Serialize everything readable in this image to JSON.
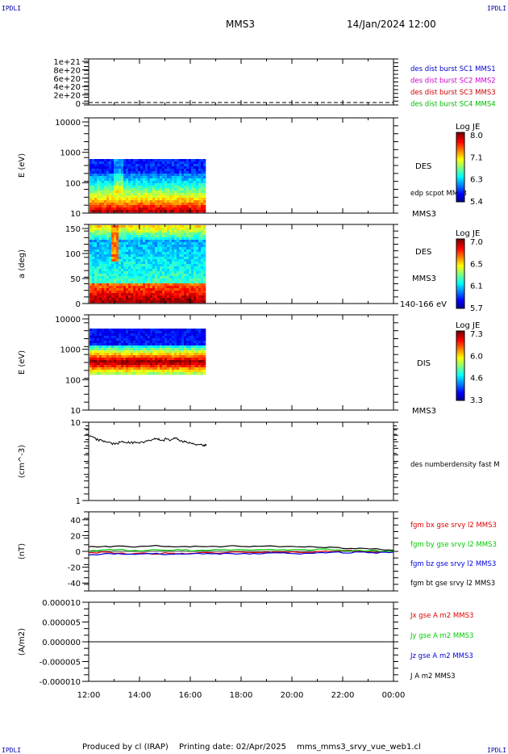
{
  "header": {
    "corner_label": "IPDLI",
    "spacecraft": "MMS3",
    "date_time": "14/Jan/2024 12:00"
  },
  "footer": {
    "produced_by": "Produced by cl (IRAP)",
    "printing_date": "Printing date: 02/Apr/2025",
    "filename": "mms_mms3_srvy_vue_web1.cl"
  },
  "colors": {
    "mms1": "#0000cc",
    "mms2": "#cc00cc",
    "mms3": "#cc0000",
    "mms4": "#00bb00",
    "bx": "#dd0000",
    "by": "#00cc00",
    "bz": "#0000dd",
    "bt": "#000000"
  },
  "chart_data": [
    {
      "type": "line",
      "panel": "burst flags",
      "ylabel": "",
      "y_ticks": [
        "1e+21",
        "8e+20",
        "6e+20",
        "4e+20",
        "2e+20",
        "0"
      ],
      "ylim": [
        0,
        1e+21
      ],
      "legend": [
        "des dist burst SC1 MMS1",
        "des dist burst SC2 MMS2",
        "des dist burst SC3 MMS3",
        "des dist burst SC4 MMS4"
      ],
      "legend_placement": "right",
      "series": [
        {
          "values": [
            0,
            0
          ]
        }
      ]
    },
    {
      "type": "heatmap",
      "panel": "DES energy spectrogram",
      "ylabel": "E (eV)",
      "y_ticks": [
        "10000",
        "1000",
        "100",
        "10"
      ],
      "ylim": [
        10,
        15000
      ],
      "y_scale": "log",
      "data_span": [
        "12:00",
        "16:35"
      ],
      "data_energy_range_eV": [
        10,
        1000
      ],
      "instrument_label": "DES",
      "overplot_label": "edp scpot MMS3",
      "spacecraft_label": "MMS3",
      "colorbar": {
        "title": "Log JE",
        "ticks": [
          "8.0",
          "7.1",
          "6.3",
          "5.4"
        ],
        "range": [
          5.4,
          8.0
        ]
      }
    },
    {
      "type": "heatmap",
      "panel": "DES pitch angle",
      "ylabel": "a (deg)",
      "y_ticks": [
        "150",
        "100",
        "50",
        "0"
      ],
      "ylim": [
        0,
        180
      ],
      "data_span": [
        "12:00",
        "16:35"
      ],
      "instrument_label": "DES",
      "spacecraft_label": "MMS3",
      "energy_range": "140-166 eV",
      "colorbar": {
        "title": "Log JE",
        "ticks": [
          "7.0",
          "6.5",
          "6.1",
          "5.7"
        ],
        "range": [
          5.7,
          7.0
        ]
      }
    },
    {
      "type": "heatmap",
      "panel": "DIS energy spectrogram",
      "ylabel": "E (eV)",
      "y_ticks": [
        "10000",
        "1000",
        "100",
        "10"
      ],
      "ylim": [
        10,
        15000
      ],
      "y_scale": "log",
      "data_span": [
        "12:00",
        "16:35"
      ],
      "data_energy_range_eV": [
        200,
        10000
      ],
      "instrument_label": "DIS",
      "spacecraft_label": "MMS3",
      "colorbar": {
        "title": "Log JE",
        "ticks": [
          "7.3",
          "6.0",
          "4.6",
          "3.3"
        ],
        "range": [
          3.3,
          7.3
        ]
      }
    },
    {
      "type": "line",
      "panel": "density",
      "ylabel": "(cm^-3)",
      "y_ticks": [
        "10",
        "1"
      ],
      "ylim": [
        1,
        10
      ],
      "y_scale": "log",
      "legend": [
        "des numberdensity fast M"
      ],
      "series": [
        {
          "x_hours": [
            0,
            0.1,
            0.2,
            0.3,
            0.4,
            0.5,
            0.6,
            0.7,
            0.8,
            0.9,
            1.0,
            1.1,
            1.2,
            1.3,
            1.4,
            1.5,
            1.6,
            1.7,
            1.8,
            1.9,
            2.0,
            2.1,
            2.2,
            2.3,
            2.4,
            2.5,
            2.6,
            2.7,
            2.8,
            2.9,
            3.0,
            3.1,
            3.2,
            3.3,
            3.4,
            3.5,
            3.6,
            3.7,
            3.8,
            3.9,
            4.0,
            4.1,
            4.2,
            4.3,
            4.4,
            4.5,
            4.58
          ],
          "values": [
            6.6,
            6.5,
            6.2,
            6.0,
            5.9,
            5.8,
            5.7,
            5.6,
            5.5,
            5.3,
            5.3,
            5.4,
            5.5,
            5.6,
            5.6,
            5.5,
            5.4,
            5.5,
            5.6,
            5.6,
            5.5,
            5.6,
            5.7,
            5.8,
            5.9,
            6.0,
            6.2,
            6.0,
            5.8,
            5.9,
            6.1,
            6.0,
            5.9,
            6.2,
            6.3,
            5.9,
            5.8,
            5.7,
            5.6,
            5.5,
            5.4,
            5.3,
            5.2,
            5.3,
            5.1,
            5.0,
            5.1
          ]
        }
      ]
    },
    {
      "type": "line",
      "panel": "magnetic field",
      "ylabel": "(nT)",
      "y_ticks": [
        "40",
        "20",
        "0",
        "-20",
        "-40"
      ],
      "ylim": [
        -50,
        50
      ],
      "legend": [
        "fgm bx gse srvy l2 MMS3",
        "fgm by gse srvy l2 MMS3",
        "fgm bz gse srvy l2 MMS3",
        "fgm bt gse srvy l2 MMS3"
      ],
      "x_hours": [
        0,
        0.5,
        1,
        1.5,
        2,
        2.5,
        3,
        3.5,
        4,
        4.5,
        5,
        5.5,
        6,
        6.5,
        7,
        7.5,
        8,
        8.5,
        9,
        9.5,
        10,
        10.5,
        11,
        11.5,
        12
      ],
      "series": [
        {
          "name": "fgm bx gse srvy l2 MMS3",
          "values": [
            -2,
            -1,
            -2,
            -3,
            -2,
            -3,
            -2,
            -3,
            -2,
            -1,
            -2,
            -1,
            -1,
            -1,
            -1,
            -1,
            -1,
            -1,
            0,
            0,
            1,
            0,
            -1,
            0,
            0
          ]
        },
        {
          "name": "fgm by gse srvy l2 MMS3",
          "values": [
            1,
            2,
            2,
            1,
            1,
            2,
            1,
            2,
            1,
            1,
            2,
            2,
            2,
            2,
            2,
            2,
            2,
            2,
            3,
            2,
            1,
            1,
            1,
            0,
            0
          ]
        },
        {
          "name": "fgm bz gse srvy l2 MMS3",
          "values": [
            -4,
            -3,
            -3,
            -4,
            -3,
            -3,
            -4,
            -3,
            -3,
            -3,
            -3,
            -3,
            -3,
            -3,
            -2,
            -2,
            -3,
            -2,
            -2,
            -1,
            -2,
            -1,
            -2,
            -1,
            -1
          ]
        },
        {
          "name": "fgm bt gse srvy l2 MMS3",
          "values": [
            6,
            6,
            7,
            6,
            6,
            7,
            6,
            6,
            6,
            6,
            6,
            7,
            6,
            7,
            7,
            6,
            6,
            6,
            5,
            5,
            4,
            4,
            3,
            2,
            1
          ]
        }
      ]
    },
    {
      "type": "line",
      "panel": "current density",
      "ylabel": "(A/m2)",
      "y_ticks": [
        "0.000010",
        "0.000005",
        "0.000000",
        "-0.000005",
        "-0.000010"
      ],
      "ylim": [
        -1e-05,
        1e-05
      ],
      "legend": [
        "Jx gse A m2 MMS3",
        "Jy gse A m2 MMS3",
        "Jz gse A m2 MMS3",
        "J A m2 MMS3"
      ],
      "series": [
        {
          "name": "J A m2 MMS3",
          "values": [
            0,
            0
          ]
        }
      ]
    }
  ],
  "x_axis": {
    "ticks": [
      "12:00",
      "14:00",
      "16:00",
      "18:00",
      "20:00",
      "22:00",
      "00:00"
    ]
  }
}
